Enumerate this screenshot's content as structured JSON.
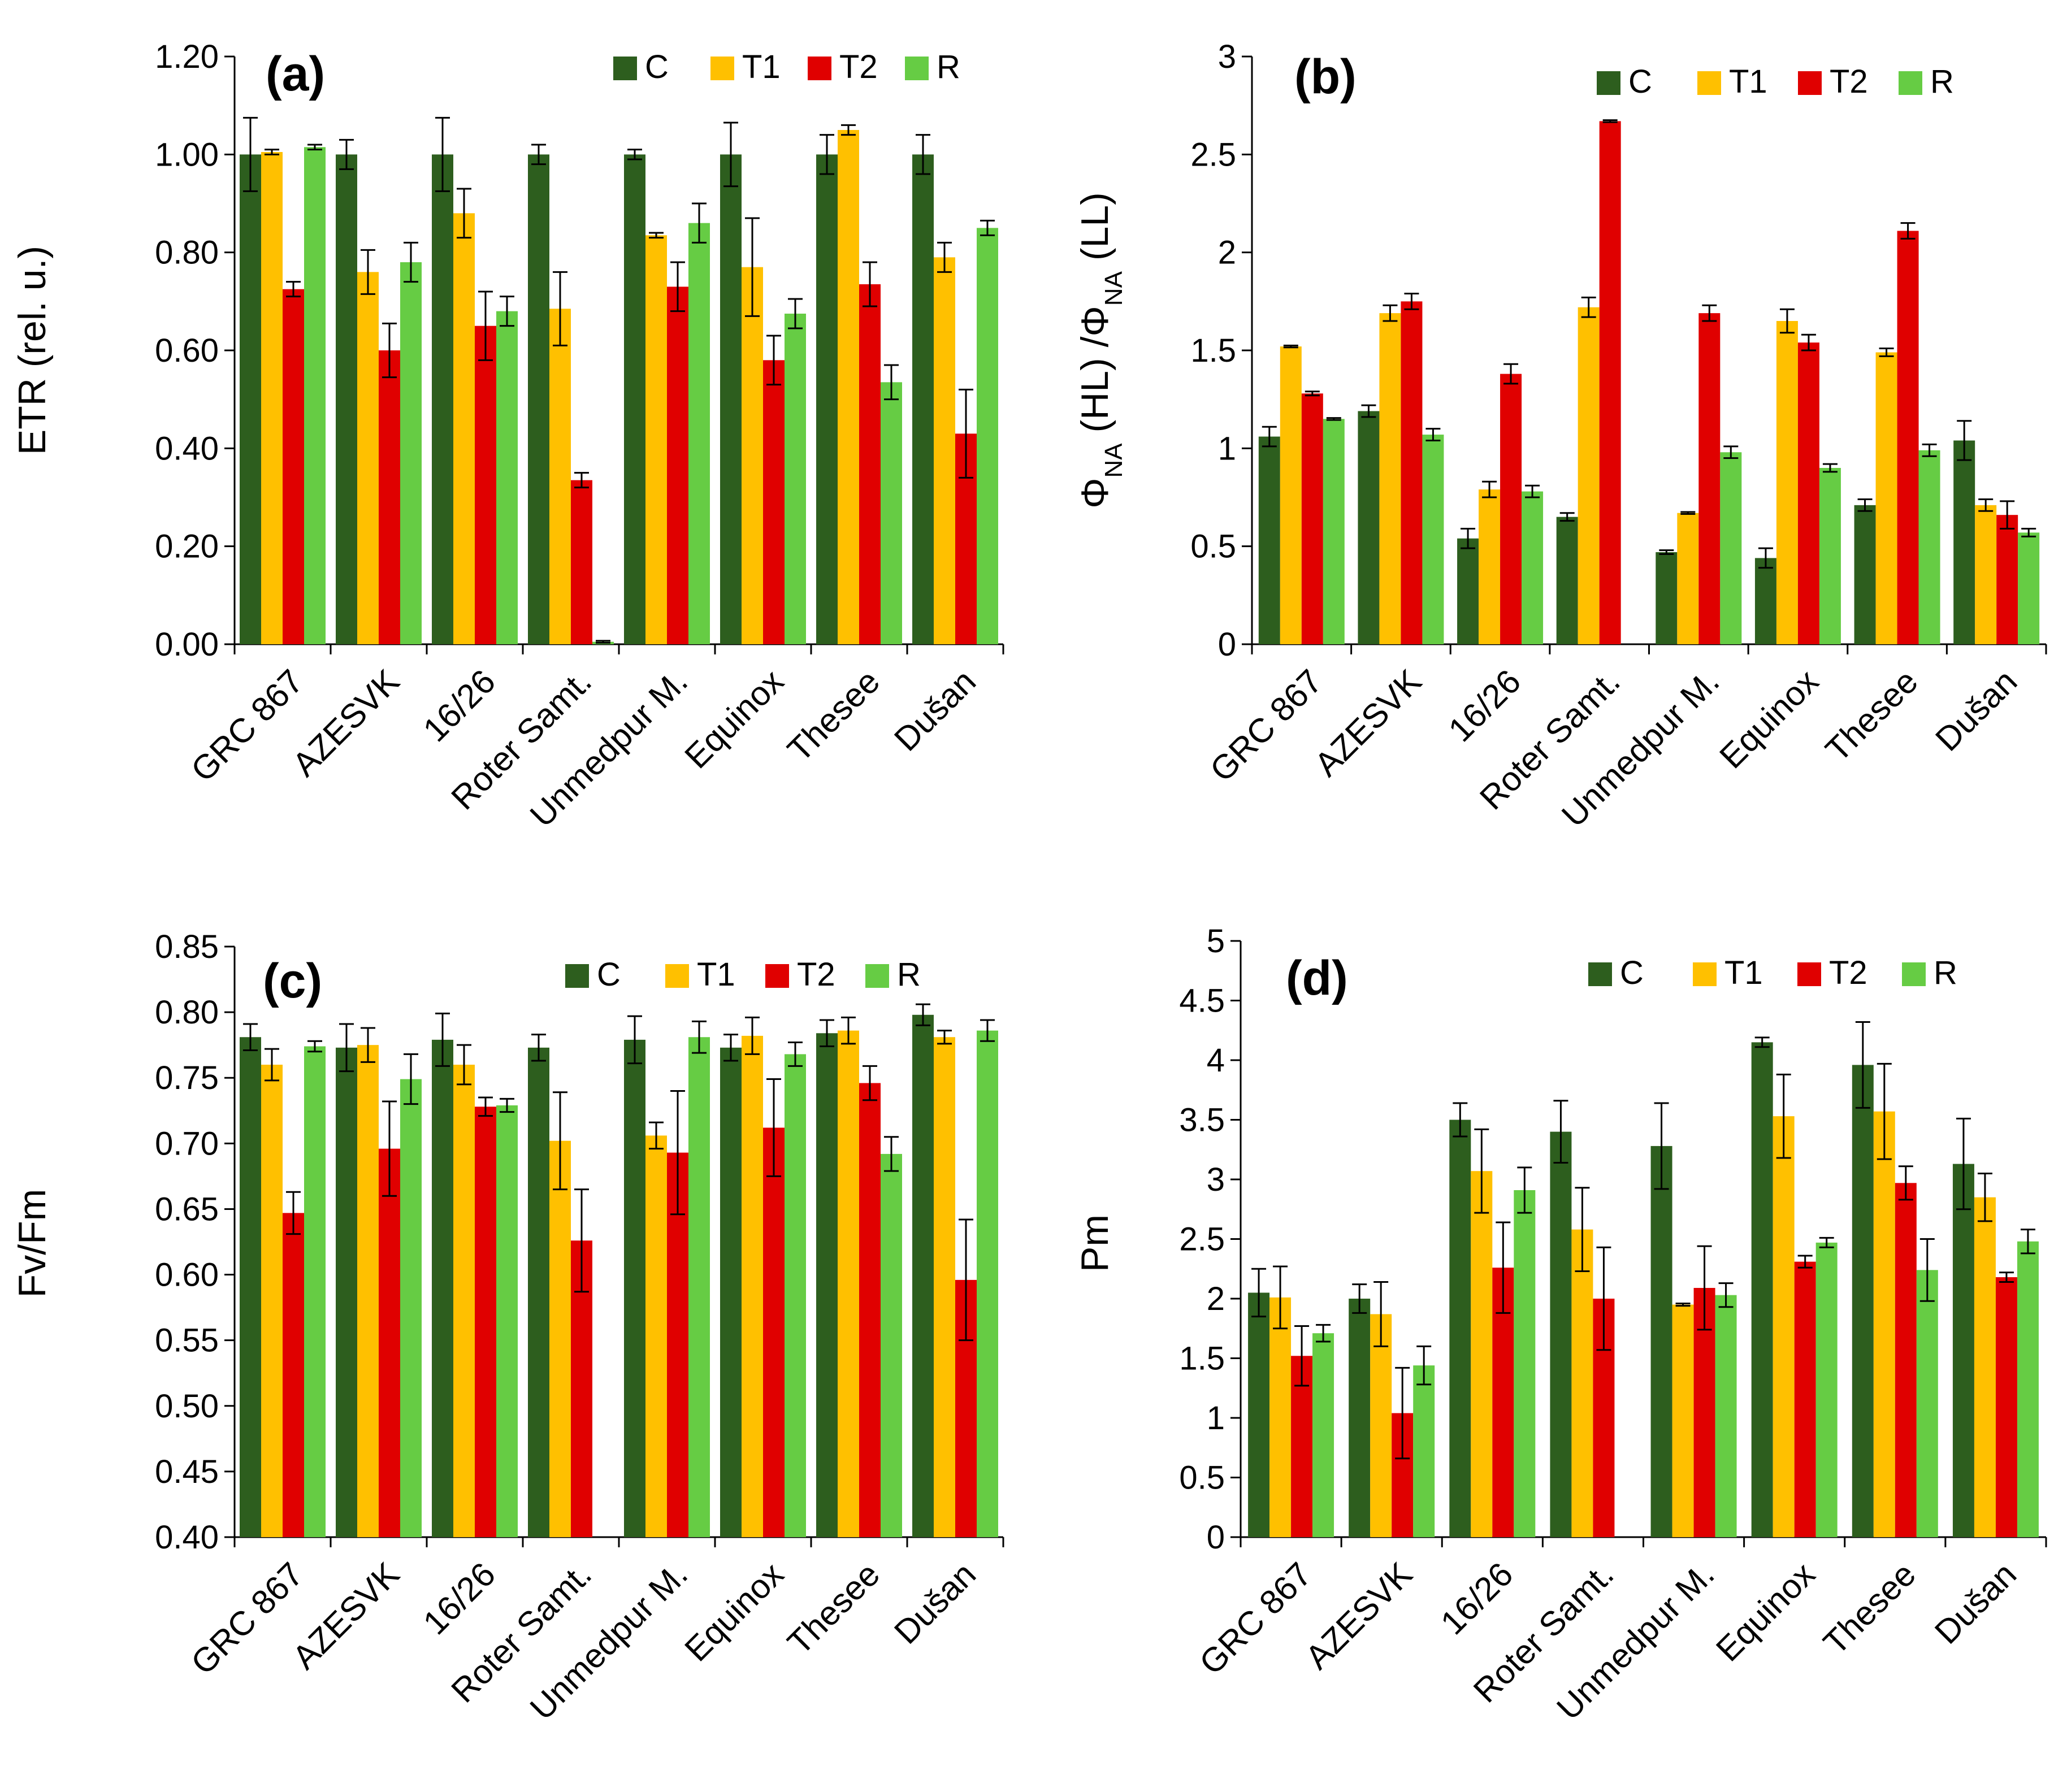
{
  "colors": {
    "C": "#2d5e1e",
    "T1": "#ffc000",
    "T2": "#e00000",
    "R": "#66cc44"
  },
  "chart_data": [
    {
      "type": "bar",
      "panel": "(a)",
      "ylabel_parts": [
        {
          "t": "ETR (rel. u.)"
        }
      ],
      "ylim": [
        0,
        1.2
      ],
      "ticks": [
        0,
        0.2,
        0.4,
        0.6,
        0.8,
        1.0,
        1.2
      ],
      "tick_labels": [
        "0.00",
        "0.20",
        "0.40",
        "0.60",
        "0.80",
        "1.00",
        "1.20"
      ],
      "categories": [
        "GRC 867",
        "AZESVK",
        "16/26",
        "Roter Samt.",
        "Unmedpur M.",
        "Equinox",
        "Thesee",
        "Dušan"
      ],
      "series": [
        {
          "name": "C",
          "values": [
            1.0,
            1.0,
            1.0,
            1.0,
            1.0,
            1.0,
            1.0,
            1.0
          ],
          "err": [
            0.075,
            0.03,
            0.075,
            0.02,
            0.01,
            0.065,
            0.04,
            0.04
          ]
        },
        {
          "name": "T1",
          "values": [
            1.005,
            0.76,
            0.88,
            0.685,
            0.835,
            0.77,
            1.05,
            0.79
          ],
          "err": [
            0.005,
            0.045,
            0.05,
            0.075,
            0.005,
            0.1,
            0.01,
            0.03
          ]
        },
        {
          "name": "T2",
          "values": [
            0.725,
            0.6,
            0.65,
            0.335,
            0.73,
            0.58,
            0.735,
            0.43
          ],
          "err": [
            0.015,
            0.055,
            0.07,
            0.015,
            0.05,
            0.05,
            0.045,
            0.09
          ]
        },
        {
          "name": "R",
          "values": [
            1.015,
            0.78,
            0.68,
            0.005,
            0.86,
            0.675,
            0.535,
            0.85
          ],
          "err": [
            0.005,
            0.04,
            0.03,
            0.002,
            0.04,
            0.03,
            0.035,
            0.015
          ]
        }
      ]
    },
    {
      "type": "bar",
      "panel": "(b)",
      "ylabel_parts": [
        {
          "t": "Φ"
        },
        {
          "t": "NA",
          "sub": true
        },
        {
          "t": " (HL) /Φ"
        },
        {
          "t": "NA",
          "sub": true
        },
        {
          "t": " (LL)"
        }
      ],
      "ylim": [
        0,
        3
      ],
      "ticks": [
        0,
        0.5,
        1,
        1.5,
        2,
        2.5,
        3
      ],
      "tick_labels": [
        "0",
        "0.5",
        "1",
        "1.5",
        "2",
        "2.5",
        "3"
      ],
      "categories": [
        "GRC 867",
        "AZESVK",
        "16/26",
        "Roter Samt.",
        "Unmedpur M.",
        "Equinox",
        "Thesee",
        "Dušan"
      ],
      "series": [
        {
          "name": "C",
          "values": [
            1.06,
            1.19,
            0.54,
            0.65,
            0.47,
            0.44,
            0.71,
            1.04
          ],
          "err": [
            0.05,
            0.03,
            0.05,
            0.02,
            0.01,
            0.05,
            0.03,
            0.1
          ]
        },
        {
          "name": "T1",
          "values": [
            1.52,
            1.69,
            0.79,
            1.72,
            0.67,
            1.65,
            1.49,
            0.71
          ],
          "err": [
            0.005,
            0.04,
            0.04,
            0.05,
            0.005,
            0.06,
            0.02,
            0.03
          ]
        },
        {
          "name": "T2",
          "values": [
            1.28,
            1.75,
            1.38,
            2.67,
            1.69,
            1.54,
            2.11,
            0.66
          ],
          "err": [
            0.01,
            0.04,
            0.05,
            0.005,
            0.04,
            0.04,
            0.04,
            0.07
          ]
        },
        {
          "name": "R",
          "values": [
            1.15,
            1.07,
            0.78,
            0,
            0.98,
            0.9,
            0.99,
            0.57
          ],
          "err": [
            0.005,
            0.03,
            0.03,
            0,
            0.03,
            0.02,
            0.03,
            0.02
          ]
        }
      ]
    },
    {
      "type": "bar",
      "panel": "(c)",
      "ylabel_parts": [
        {
          "t": "Fv/Fm"
        }
      ],
      "ylim": [
        0.4,
        0.85
      ],
      "ticks": [
        0.4,
        0.45,
        0.5,
        0.55,
        0.6,
        0.65,
        0.7,
        0.75,
        0.8,
        0.85
      ],
      "tick_labels": [
        "0.40",
        "0.45",
        "0.50",
        "0.55",
        "0.60",
        "0.65",
        "0.70",
        "0.75",
        "0.80",
        "0.85"
      ],
      "categories": [
        "GRC 867",
        "AZESVK",
        "16/26",
        "Roter Samt.",
        "Unmedpur M.",
        "Equinox",
        "Thesee",
        "Dušan"
      ],
      "series": [
        {
          "name": "C",
          "values": [
            0.781,
            0.773,
            0.779,
            0.773,
            0.779,
            0.773,
            0.784,
            0.798
          ],
          "err": [
            0.01,
            0.018,
            0.02,
            0.01,
            0.018,
            0.01,
            0.01,
            0.008
          ]
        },
        {
          "name": "T1",
          "values": [
            0.76,
            0.775,
            0.76,
            0.702,
            0.706,
            0.782,
            0.786,
            0.781
          ],
          "err": [
            0.012,
            0.013,
            0.015,
            0.037,
            0.01,
            0.014,
            0.01,
            0.005
          ]
        },
        {
          "name": "T2",
          "values": [
            0.647,
            0.696,
            0.728,
            0.626,
            0.693,
            0.712,
            0.746,
            0.596
          ],
          "err": [
            0.016,
            0.036,
            0.007,
            0.039,
            0.047,
            0.037,
            0.013,
            0.046
          ]
        },
        {
          "name": "R",
          "values": [
            0.774,
            0.749,
            0.729,
            0.4,
            0.781,
            0.768,
            0.692,
            0.786
          ],
          "err": [
            0.004,
            0.019,
            0.005,
            0.001,
            0.012,
            0.009,
            0.013,
            0.008
          ]
        }
      ]
    },
    {
      "type": "bar",
      "panel": "(d)",
      "ylabel_parts": [
        {
          "t": "Pm"
        }
      ],
      "ylim": [
        0,
        5
      ],
      "ticks": [
        0,
        0.5,
        1,
        1.5,
        2,
        2.5,
        3,
        3.5,
        4,
        4.5,
        5
      ],
      "tick_labels": [
        "0",
        "0.5",
        "1",
        "1.5",
        "2",
        "2.5",
        "3",
        "3.5",
        "4",
        "4.5",
        "5"
      ],
      "categories": [
        "GRC 867",
        "AZESVK",
        "16/26",
        "Roter Samt.",
        "Unmedpur M.",
        "Equinox",
        "Thesee",
        "Dušan"
      ],
      "series": [
        {
          "name": "C",
          "values": [
            2.05,
            2.0,
            3.5,
            3.4,
            3.28,
            4.15,
            3.96,
            3.13
          ],
          "err": [
            0.2,
            0.12,
            0.14,
            0.26,
            0.36,
            0.04,
            0.36,
            0.38
          ]
        },
        {
          "name": "T1",
          "values": [
            2.01,
            1.87,
            3.07,
            2.58,
            1.95,
            3.53,
            3.57,
            2.85
          ],
          "err": [
            0.26,
            0.27,
            0.35,
            0.35,
            0.01,
            0.35,
            0.4,
            0.2
          ]
        },
        {
          "name": "T2",
          "values": [
            1.52,
            1.04,
            2.26,
            2.0,
            2.09,
            2.31,
            2.97,
            2.18
          ],
          "err": [
            0.25,
            0.38,
            0.38,
            0.43,
            0.35,
            0.05,
            0.14,
            0.04
          ]
        },
        {
          "name": "R",
          "values": [
            1.71,
            1.44,
            2.91,
            0,
            2.03,
            2.47,
            2.24,
            2.48
          ],
          "err": [
            0.07,
            0.16,
            0.19,
            0,
            0.1,
            0.04,
            0.26,
            0.1
          ]
        }
      ]
    }
  ]
}
